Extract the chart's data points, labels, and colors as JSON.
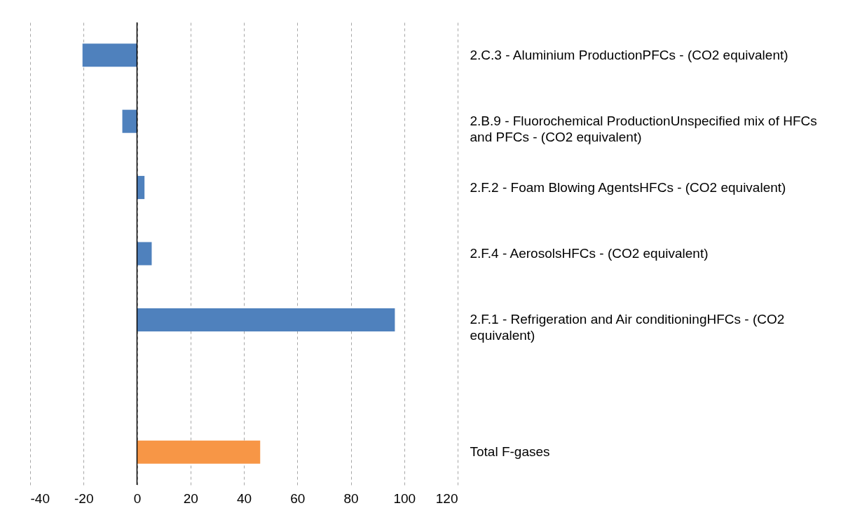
{
  "chart_data": {
    "type": "bar",
    "orientation": "horizontal",
    "categories": [
      "2.C.3 - Aluminium ProductionPFCs - (CO2 equivalent)",
      "2.B.9 - Fluorochemical ProductionUnspecified mix of HFCs and PFCs - (CO2 equivalent)",
      "2.F.2 - Foam Blowing AgentsHFCs - (CO2 equivalent)",
      "2.F.4 - AerosolsHFCs - (CO2 equivalent)",
      "2.F.1 - Refrigeration and Air conditioningHFCs - (CO2 equivalent)",
      null,
      "Total F-gases"
    ],
    "values": [
      -20.4,
      -5.5,
      2.8,
      5.5,
      96.5,
      null,
      46.1
    ],
    "colors": [
      "#4f81bd",
      "#4f81bd",
      "#4f81bd",
      "#4f81bd",
      "#4f81bd",
      "#4f81bd",
      "#f79646"
    ],
    "xlim": [
      -40,
      120
    ],
    "xticks": [
      -40,
      -20,
      0,
      20,
      40,
      60,
      80,
      100,
      120
    ],
    "grid": "x",
    "ref_lines": [
      {
        "axis": "x",
        "value": 0,
        "color": "#000000"
      }
    ]
  }
}
